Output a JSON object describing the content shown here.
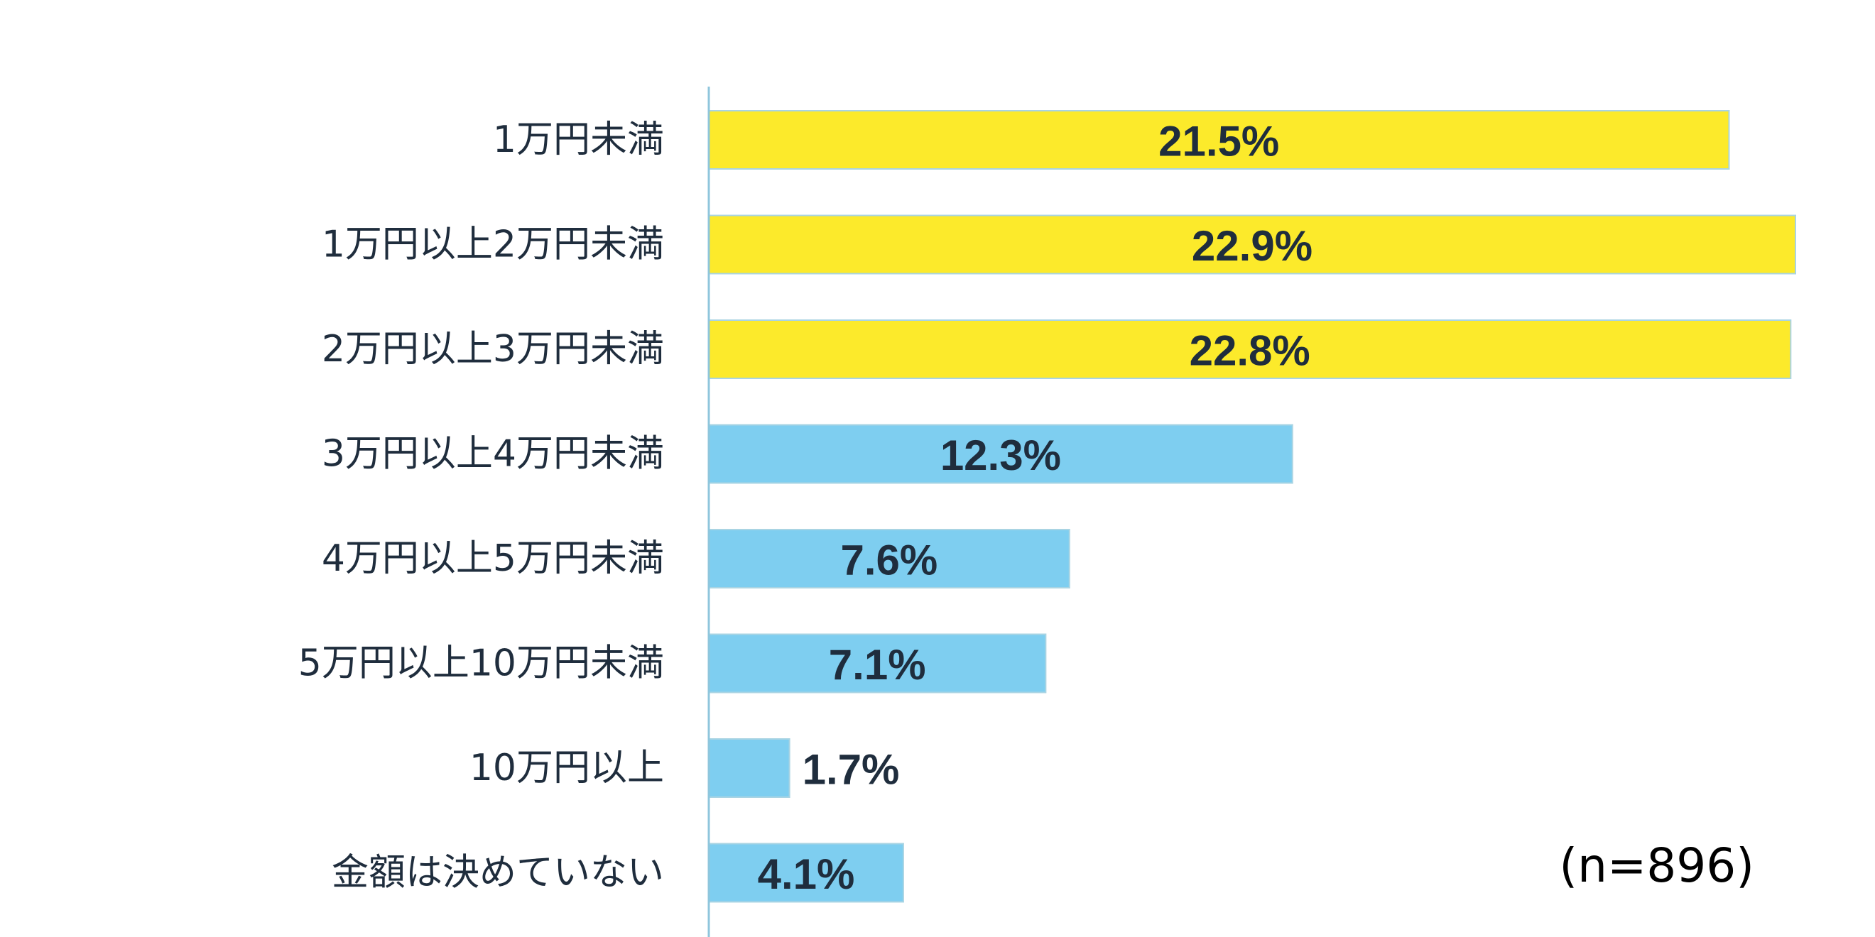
{
  "chart_data": {
    "type": "bar",
    "orientation": "horizontal",
    "categories": [
      "1万円未満",
      "1万円以上2万円未満",
      "2万円以上3万円未満",
      "3万円以上4万円未満",
      "4万円以上5万円未満",
      "5万円以上10万円未満",
      "10万円以上",
      "金額は決めていない"
    ],
    "values": [
      21.5,
      22.9,
      22.8,
      12.3,
      7.6,
      7.1,
      1.7,
      4.1
    ],
    "value_labels": [
      "21.5%",
      "22.9%",
      "22.8%",
      "12.3%",
      "7.6%",
      "7.1%",
      "1.7%",
      "4.1%"
    ],
    "highlighted": [
      true,
      true,
      true,
      false,
      false,
      false,
      false,
      false
    ],
    "colors": {
      "highlight": "#FCEA2B",
      "normal": "#7ECEF0",
      "bar_border": "#A9D4E3",
      "axis": "#8FC6DC",
      "text": "#1F2D3D"
    },
    "xlim": [
      0,
      22.9
    ],
    "grid": false,
    "legend": "none",
    "note": "(n=896)"
  }
}
